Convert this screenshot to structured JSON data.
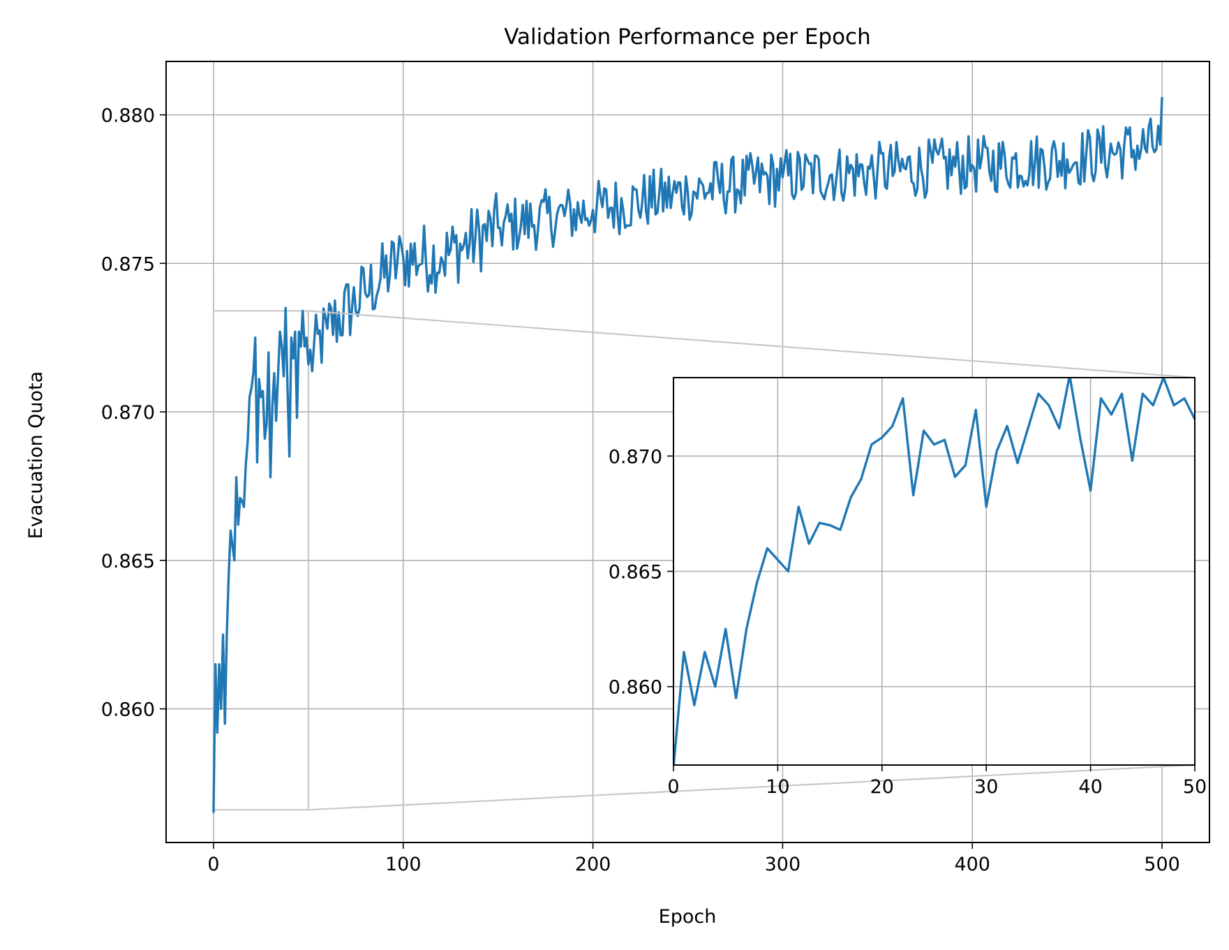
{
  "chart_data": {
    "type": "line",
    "title": "Validation Performance per Epoch",
    "xlabel": "Epoch",
    "ylabel": "Evacuation Quota",
    "xlim": [
      -25,
      525
    ],
    "ylim": [
      0.8555,
      0.8818
    ],
    "xticks": [
      0,
      100,
      200,
      300,
      400,
      500
    ],
    "xtick_labels": [
      "0",
      "100",
      "200",
      "300",
      "400",
      "500"
    ],
    "yticks": [
      0.86,
      0.865,
      0.87,
      0.875,
      0.88
    ],
    "ytick_labels": [
      "0.860",
      "0.865",
      "0.870",
      "0.875",
      "0.880"
    ],
    "grid": true,
    "line_color": "#1f77b4",
    "series": [
      {
        "name": "validation",
        "anchors": [
          [
            0,
            0.8565
          ],
          [
            1,
            0.8615
          ],
          [
            2,
            0.8592
          ],
          [
            3,
            0.8615
          ],
          [
            4,
            0.86
          ],
          [
            5,
            0.8625
          ],
          [
            6,
            0.8595
          ],
          [
            7,
            0.8625
          ],
          [
            8,
            0.8645
          ],
          [
            9,
            0.866
          ],
          [
            10,
            0.8655
          ],
          [
            11,
            0.865
          ],
          [
            12,
            0.8678
          ],
          [
            13,
            0.8662
          ],
          [
            14,
            0.8671
          ],
          [
            15,
            0.867
          ],
          [
            16,
            0.8668
          ],
          [
            17,
            0.8682
          ],
          [
            18,
            0.869
          ],
          [
            19,
            0.8705
          ],
          [
            20,
            0.8708
          ],
          [
            21,
            0.8713
          ],
          [
            22,
            0.8725
          ],
          [
            23,
            0.8683
          ],
          [
            24,
            0.8711
          ],
          [
            25,
            0.8705
          ],
          [
            26,
            0.8707
          ],
          [
            27,
            0.8691
          ],
          [
            28,
            0.8696
          ],
          [
            29,
            0.872
          ],
          [
            30,
            0.8678
          ],
          [
            31,
            0.8702
          ],
          [
            32,
            0.8713
          ],
          [
            33,
            0.8697
          ],
          [
            34,
            0.8712
          ],
          [
            35,
            0.8727
          ],
          [
            36,
            0.8722
          ],
          [
            37,
            0.8712
          ],
          [
            38,
            0.8735
          ],
          [
            39,
            0.8708
          ],
          [
            40,
            0.8685
          ],
          [
            41,
            0.8725
          ],
          [
            42,
            0.8718
          ],
          [
            43,
            0.8727
          ],
          [
            44,
            0.8698
          ],
          [
            45,
            0.8727
          ],
          [
            46,
            0.8722
          ],
          [
            47,
            0.8734
          ],
          [
            48,
            0.8722
          ],
          [
            49,
            0.8725
          ],
          [
            50,
            0.8716
          ],
          [
            60,
            0.8728
          ],
          [
            80,
            0.874
          ],
          [
            100,
            0.8752
          ],
          [
            120,
            0.8752
          ],
          [
            150,
            0.8762
          ],
          [
            200,
            0.8768
          ],
          [
            250,
            0.8774
          ],
          [
            300,
            0.8779
          ],
          [
            350,
            0.8781
          ],
          [
            400,
            0.8783
          ],
          [
            450,
            0.8785
          ],
          [
            499,
            0.879
          ],
          [
            500,
            0.8806
          ]
        ]
      }
    ],
    "inset": {
      "xlim": [
        0,
        50
      ],
      "ylim": [
        0.8566,
        0.8734
      ],
      "xticks": [
        0,
        10,
        20,
        30,
        40,
        50
      ],
      "xtick_labels": [
        "0",
        "10",
        "20",
        "30",
        "40",
        "50"
      ],
      "yticks": [
        0.86,
        0.865,
        0.87
      ],
      "ytick_labels": [
        "0.860",
        "0.865",
        "0.870"
      ]
    }
  }
}
